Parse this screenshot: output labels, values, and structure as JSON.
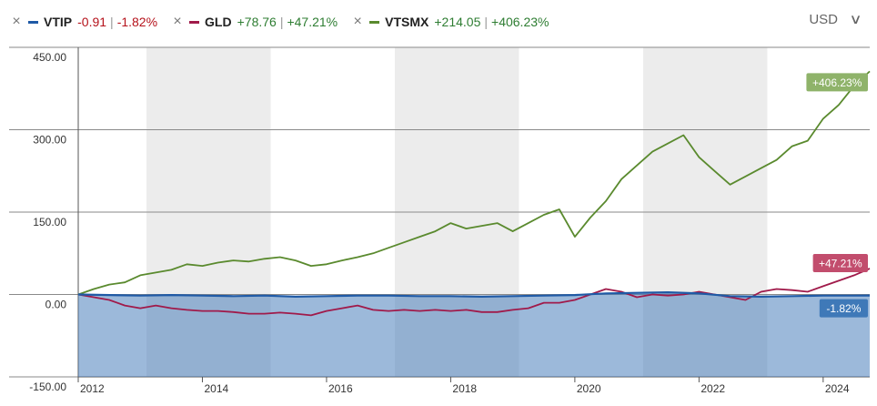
{
  "legend": [
    {
      "ticker": "VTIP",
      "change": "-0.91",
      "pct": "-1.82%",
      "color": "#1f5aa6",
      "change_color": "#b5121b"
    },
    {
      "ticker": "GLD",
      "change": "+78.76",
      "pct": "+47.21%",
      "color": "#a01a4a",
      "change_color": "#2e7d32"
    },
    {
      "ticker": "VTSMX",
      "change": "+214.05",
      "pct": "+406.23%",
      "color": "#5a8a2e",
      "change_color": "#2e7d32"
    }
  ],
  "currency": {
    "label": "USD"
  },
  "chart_data": {
    "type": "line",
    "x_ticks": [
      "2012",
      "2014",
      "2016",
      "2018",
      "2020",
      "2022",
      "2024"
    ],
    "x_tick_values": [
      2012,
      2014,
      2016,
      2018,
      2020,
      2022,
      2024
    ],
    "xlim": [
      2012,
      2024.75
    ],
    "y_ticks": [
      "450.00",
      "300.00",
      "150.00",
      "0.00",
      "-150.00"
    ],
    "y_tick_values": [
      450,
      300,
      150,
      0,
      -150
    ],
    "ylim": [
      -150,
      450
    ],
    "shaded_bands": [
      [
        2013.1,
        2015.1
      ],
      [
        2017.1,
        2019.1
      ],
      [
        2021.1,
        2023.1
      ]
    ],
    "series": [
      {
        "name": "VTSMX",
        "color": "#5a8a2e",
        "end_label": "+406.23%",
        "label_color": "#8fb36a",
        "points": [
          [
            2012.0,
            0
          ],
          [
            2012.25,
            10
          ],
          [
            2012.5,
            18
          ],
          [
            2012.75,
            22
          ],
          [
            2013.0,
            35
          ],
          [
            2013.25,
            40
          ],
          [
            2013.5,
            45
          ],
          [
            2013.75,
            55
          ],
          [
            2014.0,
            52
          ],
          [
            2014.25,
            58
          ],
          [
            2014.5,
            62
          ],
          [
            2014.75,
            60
          ],
          [
            2015.0,
            65
          ],
          [
            2015.25,
            68
          ],
          [
            2015.5,
            62
          ],
          [
            2015.75,
            52
          ],
          [
            2016.0,
            55
          ],
          [
            2016.25,
            62
          ],
          [
            2016.5,
            68
          ],
          [
            2016.75,
            75
          ],
          [
            2017.0,
            85
          ],
          [
            2017.25,
            95
          ],
          [
            2017.5,
            105
          ],
          [
            2017.75,
            115
          ],
          [
            2018.0,
            130
          ],
          [
            2018.25,
            120
          ],
          [
            2018.5,
            125
          ],
          [
            2018.75,
            130
          ],
          [
            2019.0,
            115
          ],
          [
            2019.25,
            130
          ],
          [
            2019.5,
            145
          ],
          [
            2019.75,
            155
          ],
          [
            2020.0,
            105
          ],
          [
            2020.25,
            140
          ],
          [
            2020.5,
            170
          ],
          [
            2020.75,
            210
          ],
          [
            2021.0,
            235
          ],
          [
            2021.25,
            260
          ],
          [
            2021.5,
            275
          ],
          [
            2021.75,
            290
          ],
          [
            2022.0,
            250
          ],
          [
            2022.25,
            225
          ],
          [
            2022.5,
            200
          ],
          [
            2022.75,
            215
          ],
          [
            2023.0,
            230
          ],
          [
            2023.25,
            245
          ],
          [
            2023.5,
            270
          ],
          [
            2023.75,
            280
          ],
          [
            2024.0,
            320
          ],
          [
            2024.25,
            345
          ],
          [
            2024.5,
            380
          ],
          [
            2024.75,
            406.23
          ]
        ]
      },
      {
        "name": "GLD",
        "color": "#a01a4a",
        "end_label": "+47.21%",
        "label_color": "#c24d6d",
        "points": [
          [
            2012.0,
            0
          ],
          [
            2012.25,
            -5
          ],
          [
            2012.5,
            -10
          ],
          [
            2012.75,
            -20
          ],
          [
            2013.0,
            -25
          ],
          [
            2013.25,
            -20
          ],
          [
            2013.5,
            -25
          ],
          [
            2013.75,
            -28
          ],
          [
            2014.0,
            -30
          ],
          [
            2014.25,
            -30
          ],
          [
            2014.5,
            -32
          ],
          [
            2014.75,
            -35
          ],
          [
            2015.0,
            -35
          ],
          [
            2015.25,
            -33
          ],
          [
            2015.5,
            -35
          ],
          [
            2015.75,
            -38
          ],
          [
            2016.0,
            -30
          ],
          [
            2016.25,
            -25
          ],
          [
            2016.5,
            -20
          ],
          [
            2016.75,
            -28
          ],
          [
            2017.0,
            -30
          ],
          [
            2017.25,
            -28
          ],
          [
            2017.5,
            -30
          ],
          [
            2017.75,
            -28
          ],
          [
            2018.0,
            -30
          ],
          [
            2018.25,
            -28
          ],
          [
            2018.5,
            -32
          ],
          [
            2018.75,
            -32
          ],
          [
            2019.0,
            -28
          ],
          [
            2019.25,
            -25
          ],
          [
            2019.5,
            -15
          ],
          [
            2019.75,
            -15
          ],
          [
            2020.0,
            -10
          ],
          [
            2020.25,
            0
          ],
          [
            2020.5,
            10
          ],
          [
            2020.75,
            5
          ],
          [
            2021.0,
            -5
          ],
          [
            2021.25,
            0
          ],
          [
            2021.5,
            -2
          ],
          [
            2021.75,
            0
          ],
          [
            2022.0,
            5
          ],
          [
            2022.25,
            0
          ],
          [
            2022.5,
            -5
          ],
          [
            2022.75,
            -10
          ],
          [
            2023.0,
            5
          ],
          [
            2023.25,
            10
          ],
          [
            2023.5,
            8
          ],
          [
            2023.75,
            5
          ],
          [
            2024.0,
            15
          ],
          [
            2024.25,
            25
          ],
          [
            2024.5,
            35
          ],
          [
            2024.75,
            47.21
          ]
        ]
      },
      {
        "name": "VTIP",
        "color": "#1f5aa6",
        "end_label": "-1.82%",
        "label_color": "#3f79b8",
        "fill": true,
        "points": [
          [
            2012.0,
            0
          ],
          [
            2012.5,
            -1
          ],
          [
            2013.0,
            -2
          ],
          [
            2013.5,
            -1
          ],
          [
            2014.0,
            -2
          ],
          [
            2014.5,
            -3
          ],
          [
            2015.0,
            -2
          ],
          [
            2015.5,
            -4
          ],
          [
            2016.0,
            -3
          ],
          [
            2016.5,
            -2
          ],
          [
            2017.0,
            -2
          ],
          [
            2017.5,
            -3
          ],
          [
            2018.0,
            -3
          ],
          [
            2018.5,
            -4
          ],
          [
            2019.0,
            -3
          ],
          [
            2019.5,
            -2
          ],
          [
            2020.0,
            -1
          ],
          [
            2020.5,
            2
          ],
          [
            2021.0,
            3
          ],
          [
            2021.5,
            4
          ],
          [
            2022.0,
            2
          ],
          [
            2022.5,
            -3
          ],
          [
            2023.0,
            -4
          ],
          [
            2023.5,
            -3
          ],
          [
            2024.0,
            -2
          ],
          [
            2024.5,
            -2
          ],
          [
            2024.75,
            -1.82
          ]
        ]
      }
    ]
  }
}
